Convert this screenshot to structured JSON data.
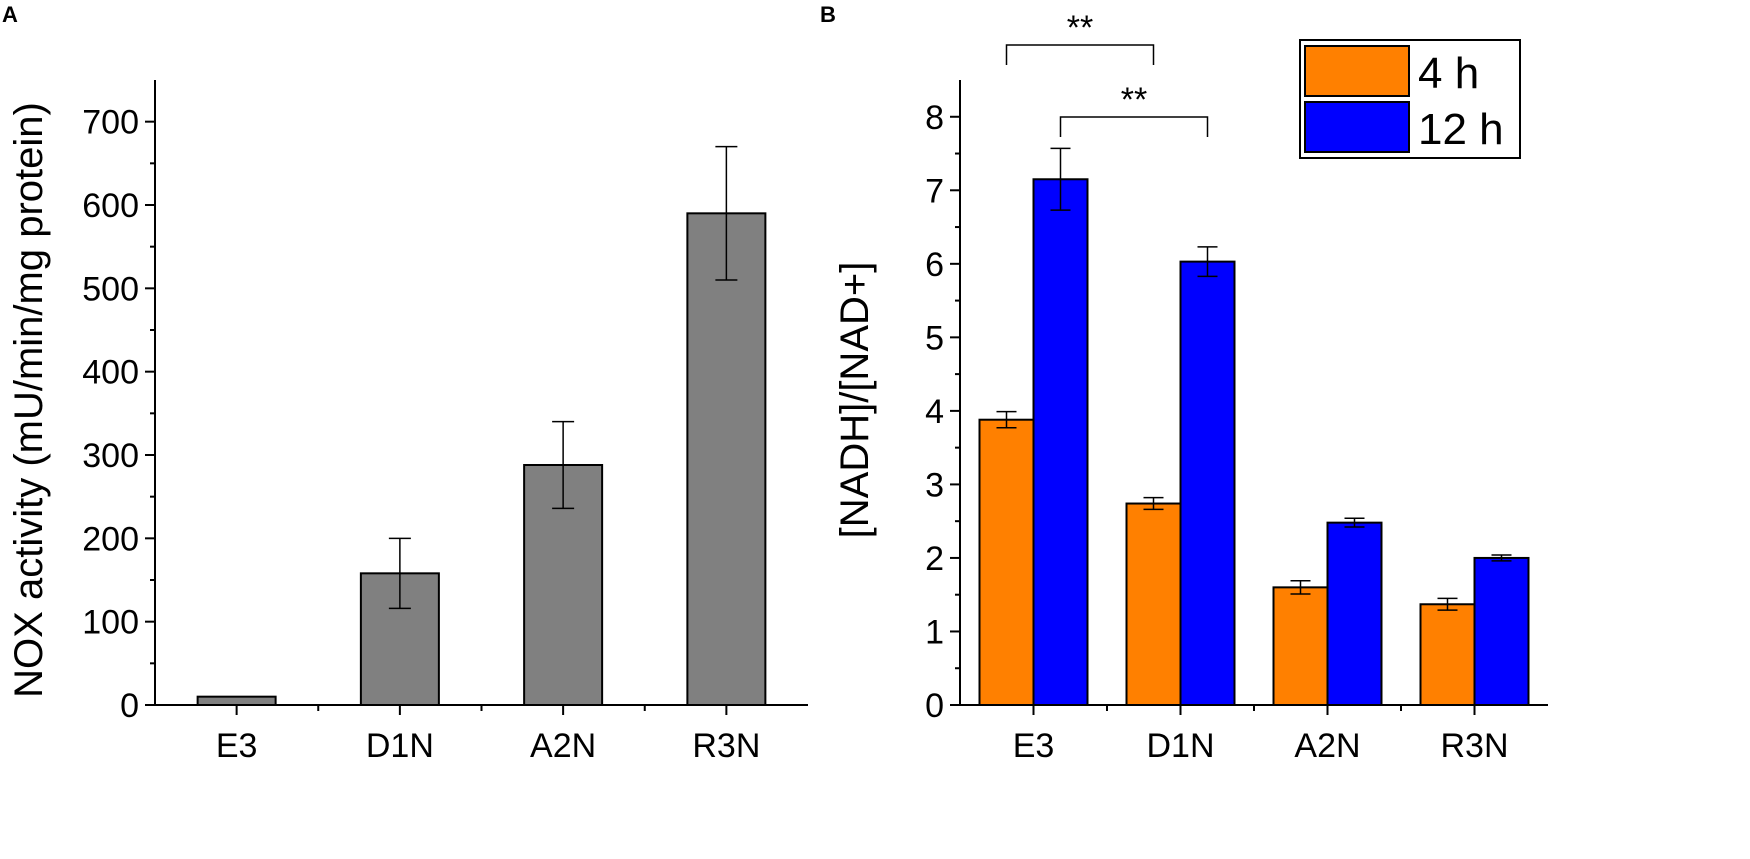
{
  "chart_data": [
    {
      "panel": "A",
      "type": "bar",
      "title": "",
      "xlabel": "",
      "ylabel": "NOX activity (mU/min/mg protein)",
      "categories": [
        "E3",
        "D1N",
        "A2N",
        "R3N"
      ],
      "values": [
        10,
        158,
        288,
        590
      ],
      "errors": [
        0,
        42,
        52,
        80
      ],
      "ylim": [
        0,
        750
      ],
      "yticks": [
        0,
        100,
        200,
        300,
        400,
        500,
        600,
        700
      ],
      "bar_color": "#808080",
      "grid": false
    },
    {
      "panel": "B",
      "type": "bar",
      "title": "",
      "xlabel": "",
      "ylabel": "[NADH]/[NAD+]",
      "categories": [
        "E3",
        "D1N",
        "A2N",
        "R3N"
      ],
      "series": [
        {
          "name": "4 h",
          "color": "#ff8000",
          "values": [
            3.88,
            2.74,
            1.6,
            1.37
          ],
          "errors": [
            0.11,
            0.08,
            0.09,
            0.08
          ]
        },
        {
          "name": "12 h",
          "color": "#0000ff",
          "values": [
            7.15,
            6.03,
            2.48,
            2.0
          ],
          "errors": [
            0.42,
            0.2,
            0.06,
            0.04
          ]
        }
      ],
      "ylim": [
        0,
        8.5
      ],
      "yticks": [
        0,
        1,
        2,
        3,
        4,
        5,
        6,
        7,
        8
      ],
      "legend_position": "top-right",
      "annotations": [
        {
          "text": "**",
          "from": "E3 4 h",
          "to": "D1N 4 h"
        },
        {
          "text": "**",
          "from": "E3 12 h",
          "to": "D1N 12 h"
        }
      ],
      "grid": false
    }
  ]
}
